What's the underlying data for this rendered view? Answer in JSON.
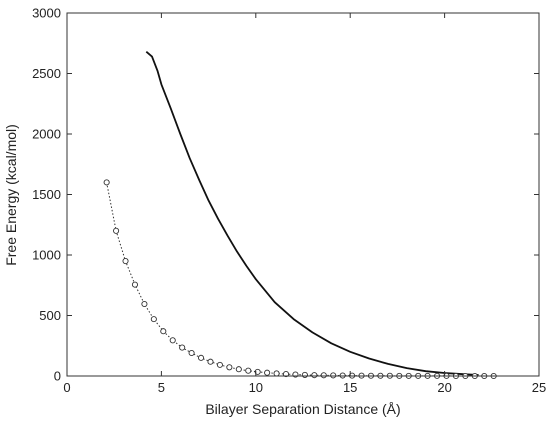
{
  "chart_data": {
    "type": "line",
    "xlabel": "Bilayer Separation Distance (Å)",
    "ylabel": "Free Energy (kcal/mol)",
    "xlim": [
      0,
      25
    ],
    "ylim": [
      0,
      3000
    ],
    "x_ticks": [
      "0",
      "5",
      "10",
      "15",
      "20",
      "25"
    ],
    "y_ticks": [
      "0",
      "500",
      "1000",
      "1500",
      "2000",
      "2500",
      "3000"
    ],
    "grid": false,
    "legend": "none",
    "series": [
      {
        "style": "solid line",
        "color": "#111111",
        "x": [
          4.2,
          4.5,
          4.8,
          5.0,
          5.5,
          6.0,
          6.5,
          7.0,
          7.5,
          8.0,
          8.5,
          9.0,
          9.5,
          10.0,
          11.0,
          12.0,
          13.0,
          14.0,
          15.0,
          16.0,
          17.0,
          18.0,
          19.0,
          20.0,
          21.0,
          21.8
        ],
        "y": [
          2680,
          2640,
          2520,
          2410,
          2210,
          2000,
          1800,
          1620,
          1450,
          1300,
          1160,
          1030,
          910,
          800,
          610,
          470,
          360,
          270,
          200,
          145,
          100,
          65,
          40,
          25,
          15,
          8
        ]
      },
      {
        "style": "dotted line with circle markers",
        "color": "#333333",
        "x": [
          2.1,
          2.6,
          3.1,
          3.6,
          4.1,
          4.6,
          5.1,
          5.6,
          6.1,
          6.6,
          7.1,
          7.6,
          8.1,
          8.6,
          9.1,
          9.6,
          10.1,
          10.6,
          11.1,
          11.6,
          12.1,
          12.6,
          13.1,
          13.6,
          14.1,
          14.6,
          15.1,
          15.6,
          16.1,
          16.6,
          17.1,
          17.6,
          18.1,
          18.6,
          19.1,
          19.6,
          20.1,
          20.6,
          21.1,
          21.6,
          22.1,
          22.6
        ],
        "y": [
          1600,
          1200,
          950,
          755,
          595,
          470,
          370,
          295,
          235,
          190,
          150,
          118,
          92,
          72,
          56,
          44,
          34,
          27,
          21,
          16,
          12,
          9,
          7,
          6,
          5,
          4,
          3,
          3,
          2,
          2,
          2,
          1,
          1,
          1,
          1,
          1,
          1,
          0,
          0,
          0,
          0,
          0
        ]
      }
    ]
  }
}
